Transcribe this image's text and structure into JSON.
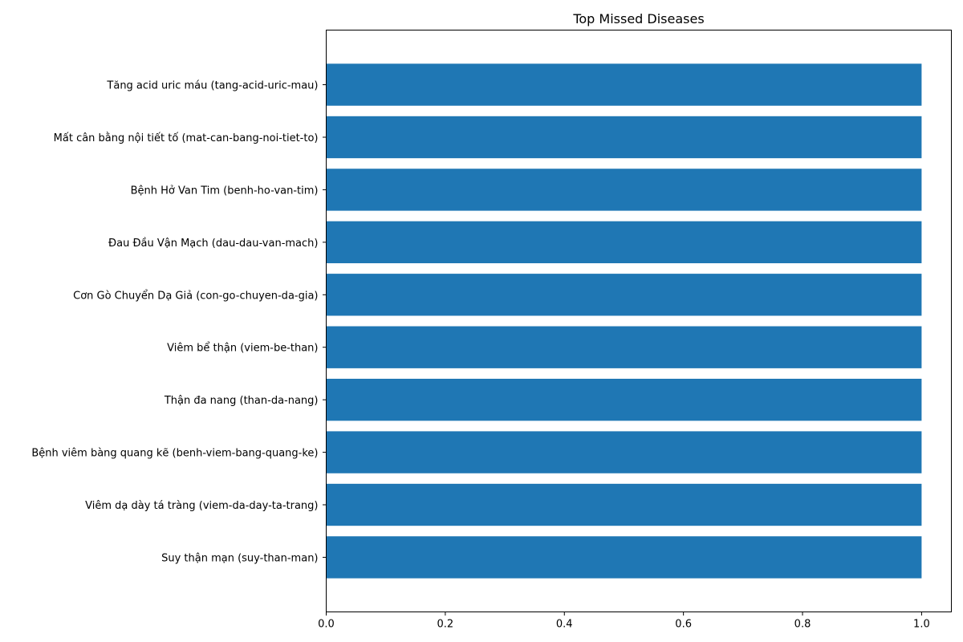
{
  "chart_data": {
    "type": "bar",
    "orientation": "horizontal",
    "title": "Top Missed Diseases",
    "xlabel": "",
    "ylabel": "",
    "xlim": [
      0,
      1.05
    ],
    "x_ticks": [
      0.0,
      0.2,
      0.4,
      0.6,
      0.8,
      1.0
    ],
    "x_tick_labels": [
      "0.0",
      "0.2",
      "0.4",
      "0.6",
      "0.8",
      "1.0"
    ],
    "grid": false,
    "legend": "none",
    "bar_color": "#1f77b4",
    "categories": [
      "Tăng acid uric máu (tang-acid-uric-mau)",
      "Mất cân bằng nội tiết tố (mat-can-bang-noi-tiet-to)",
      "Bệnh Hở Van Tim (benh-ho-van-tim)",
      "Đau Đầu Vận Mạch (dau-dau-van-mach)",
      "Cơn Gò Chuyển Dạ Giả (con-go-chuyen-da-gia)",
      "Viêm bể thận (viem-be-than)",
      "Thận đa nang (than-da-nang)",
      "Bệnh viêm bàng quang kẽ (benh-viem-bang-quang-ke)",
      "Viêm dạ dày tá tràng (viem-da-day-ta-trang)",
      "Suy thận mạn (suy-than-man)"
    ],
    "values": [
      1.0,
      1.0,
      1.0,
      1.0,
      1.0,
      1.0,
      1.0,
      1.0,
      1.0,
      1.0
    ]
  }
}
